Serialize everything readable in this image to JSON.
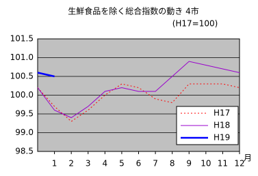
{
  "chart_data": {
    "type": "line",
    "title": "生鮮食品を除く総合指数の動き 4市",
    "subtitle": "(H17=100)",
    "x_label": "月",
    "x": [
      0,
      1,
      2,
      3,
      4,
      5,
      6,
      7,
      8,
      9,
      10,
      11,
      12
    ],
    "xlim": [
      0,
      12
    ],
    "xticks": [
      1,
      2,
      3,
      4,
      5,
      6,
      7,
      8,
      9,
      10,
      11,
      12
    ],
    "ylim": [
      98.5,
      101.5
    ],
    "yticks": [
      {
        "value": 98.5,
        "label": "98.5"
      },
      {
        "value": 99,
        "label": "99.0"
      },
      {
        "value": 99.5,
        "label": "99.5"
      },
      {
        "value": 100,
        "label": "100.0"
      },
      {
        "value": 100.5,
        "label": "100.5"
      },
      {
        "value": 101,
        "label": "101.0"
      },
      {
        "value": 101.5,
        "label": "101.5"
      }
    ],
    "grid": true,
    "legend": "lower right",
    "series": [
      {
        "name": "H17",
        "color": "#ff0000",
        "dash": true,
        "values": [
          100.2,
          99.7,
          99.3,
          99.6,
          100.0,
          100.3,
          100.2,
          99.9,
          99.8,
          100.3,
          100.3,
          100.3,
          100.2
        ]
      },
      {
        "name": "H18",
        "color": "#9900cc",
        "values": [
          100.2,
          99.6,
          99.4,
          99.7,
          100.1,
          100.2,
          100.1,
          100.1,
          100.5,
          100.9,
          100.8,
          100.7,
          100.6
        ]
      },
      {
        "name": "H19",
        "color": "#0000ff",
        "width": 2.5,
        "values": [
          100.6,
          100.5,
          null,
          null,
          null,
          null,
          null,
          null,
          null,
          null,
          null,
          null,
          null
        ]
      }
    ]
  }
}
